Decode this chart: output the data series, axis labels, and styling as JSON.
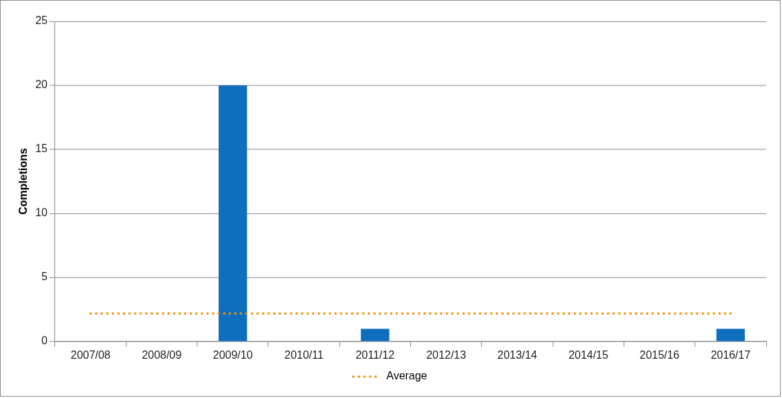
{
  "chart_data": {
    "type": "bar",
    "ylabel": "Completions",
    "categories": [
      "2007/08",
      "2008/09",
      "2009/10",
      "2010/11",
      "2011/12",
      "2012/13",
      "2013/14",
      "2014/15",
      "2015/16",
      "2016/17"
    ],
    "series": [
      {
        "color": "#0f6fbf",
        "values": [
          0,
          0,
          20,
          0,
          1,
          0,
          0,
          0,
          0,
          1
        ]
      },
      {
        "type": "line",
        "name": "Average",
        "color": "#f39200",
        "line_style": "dotted",
        "marker": "none",
        "values": [
          2.2,
          2.2,
          2.2,
          2.2,
          2.2,
          2.2,
          2.2,
          2.2,
          2.2,
          2.2
        ]
      }
    ],
    "ylim": [
      0,
      25
    ],
    "yticks": [
      0,
      5,
      10,
      15,
      20,
      25
    ],
    "grid": "y",
    "legend": "bottom"
  }
}
